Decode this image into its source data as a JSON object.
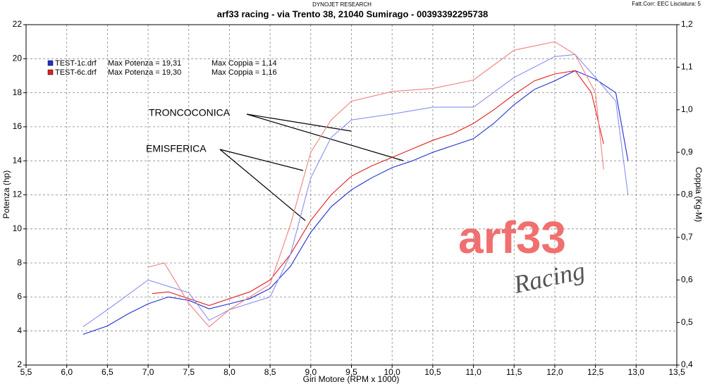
{
  "chart_data": {
    "type": "line",
    "header_left": "DYNOJET RESEARCH",
    "header_right": "Fatt.Corr: EEC  Lisciatura: 5",
    "title": "arf33 racing - via Trento 38, 21040 Sumirago - 00393392295738",
    "x_label": "Giri Motore (RPM x 1000)",
    "y_label": "Potenza (hp)",
    "y2_label": "Coppia (Kg-M)",
    "annotations": [
      "TRONCOCONICA",
      "EMISFERICA"
    ],
    "watermark": [
      "arf33",
      "Racing"
    ],
    "legend": [
      {
        "file": "TEST-1c.drf",
        "power": "Max Potenza = 19,31",
        "torque": "Max Coppia = 1,14",
        "color": "#1f2fd0"
      },
      {
        "file": "TEST-6c.drf",
        "power": "Max Potenza = 19,30",
        "torque": "Max Coppia = 1,16",
        "color": "#e02020"
      }
    ],
    "grid": true,
    "xlim": [
      5.5,
      13.5
    ],
    "xticks": [
      {
        "value": 5.5,
        "label": "5,5"
      },
      {
        "value": 6.0,
        "label": "6,0"
      },
      {
        "value": 6.5,
        "label": "6,5"
      },
      {
        "value": 7.0,
        "label": "7,0"
      },
      {
        "value": 7.5,
        "label": "7,5"
      },
      {
        "value": 8.0,
        "label": "8,0"
      },
      {
        "value": 8.5,
        "label": "8,5"
      },
      {
        "value": 9.0,
        "label": "9,0"
      },
      {
        "value": 9.5,
        "label": "9,5"
      },
      {
        "value": 10.0,
        "label": "10,0"
      },
      {
        "value": 10.5,
        "label": "10,5"
      },
      {
        "value": 11.0,
        "label": "11,0"
      },
      {
        "value": 11.5,
        "label": "11,5"
      },
      {
        "value": 12.0,
        "label": "12,0"
      },
      {
        "value": 12.5,
        "label": "12,5"
      },
      {
        "value": 13.0,
        "label": "13,0"
      },
      {
        "value": 13.5,
        "label": "13,5"
      }
    ],
    "ylim": [
      2,
      22
    ],
    "yticks": [
      2,
      4,
      6,
      8,
      10,
      12,
      14,
      16,
      18,
      20,
      22
    ],
    "y2lim": [
      0.4,
      1.2
    ],
    "y2ticks": [
      {
        "value": 0.4,
        "label": "0,4"
      },
      {
        "value": 0.5,
        "label": "0,5"
      },
      {
        "value": 0.6,
        "label": "0,6"
      },
      {
        "value": 0.7,
        "label": "0,7"
      },
      {
        "value": 0.8,
        "label": "0,8"
      },
      {
        "value": 0.9,
        "label": "0,9"
      },
      {
        "value": 1.0,
        "label": "1,0"
      },
      {
        "value": 1.1,
        "label": "1,1"
      },
      {
        "value": 1.2,
        "label": "1,2"
      }
    ],
    "series": [
      {
        "color": "#1f2fd0",
        "x": [
          6.2,
          6.5,
          6.75,
          7.0,
          7.25,
          7.5,
          7.75,
          8.0,
          8.25,
          8.5,
          8.75,
          9.0,
          9.25,
          9.5,
          9.75,
          10.0,
          10.25,
          10.5,
          10.75,
          11.0,
          11.25,
          11.5,
          11.75,
          12.0,
          12.25,
          12.5,
          12.75,
          12.9
        ],
        "values": [
          3.8,
          4.3,
          5.0,
          5.6,
          6.0,
          5.8,
          5.3,
          5.6,
          5.9,
          6.5,
          7.8,
          9.8,
          11.3,
          12.3,
          13.0,
          13.6,
          14.0,
          14.5,
          14.9,
          15.3,
          16.2,
          17.3,
          18.2,
          18.7,
          19.3,
          18.8,
          18.0,
          14.0
        ]
      },
      {
        "color": "#e02020",
        "x": [
          7.05,
          7.25,
          7.5,
          7.75,
          8.0,
          8.25,
          8.5,
          8.75,
          9.0,
          9.25,
          9.5,
          9.75,
          10.0,
          10.25,
          10.5,
          10.75,
          11.0,
          11.25,
          11.5,
          11.75,
          12.0,
          12.25,
          12.45,
          12.6
        ],
        "values": [
          6.2,
          6.3,
          5.9,
          5.5,
          5.9,
          6.3,
          7.0,
          8.5,
          10.5,
          12.0,
          13.1,
          13.7,
          14.2,
          14.7,
          15.2,
          15.6,
          16.2,
          17.0,
          17.9,
          18.7,
          19.1,
          19.3,
          18.0,
          15.0
        ]
      },
      {
        "color": "#8a8ff0",
        "axis": "y2",
        "x": [
          6.2,
          6.5,
          7.0,
          7.5,
          7.75,
          8.0,
          8.5,
          8.75,
          9.0,
          9.25,
          9.5,
          10.0,
          10.5,
          11.0,
          11.5,
          12.0,
          12.25,
          12.5,
          12.75,
          12.9
        ],
        "values": [
          0.49,
          0.53,
          0.6,
          0.57,
          0.505,
          0.53,
          0.56,
          0.66,
          0.84,
          0.935,
          0.976,
          0.99,
          1.006,
          1.006,
          1.076,
          1.125,
          1.13,
          1.076,
          1.02,
          0.8
        ]
      },
      {
        "color": "#f08080",
        "axis": "y2",
        "x": [
          7.0,
          7.2,
          7.5,
          7.75,
          8.0,
          8.5,
          8.75,
          9.0,
          9.25,
          9.5,
          10.0,
          10.5,
          11.0,
          11.5,
          12.0,
          12.25,
          12.5,
          12.6
        ],
        "values": [
          0.63,
          0.64,
          0.545,
          0.49,
          0.53,
          0.59,
          0.73,
          0.9,
          0.976,
          1.02,
          1.043,
          1.05,
          1.07,
          1.14,
          1.16,
          1.13,
          1.04,
          0.86
        ]
      }
    ]
  }
}
